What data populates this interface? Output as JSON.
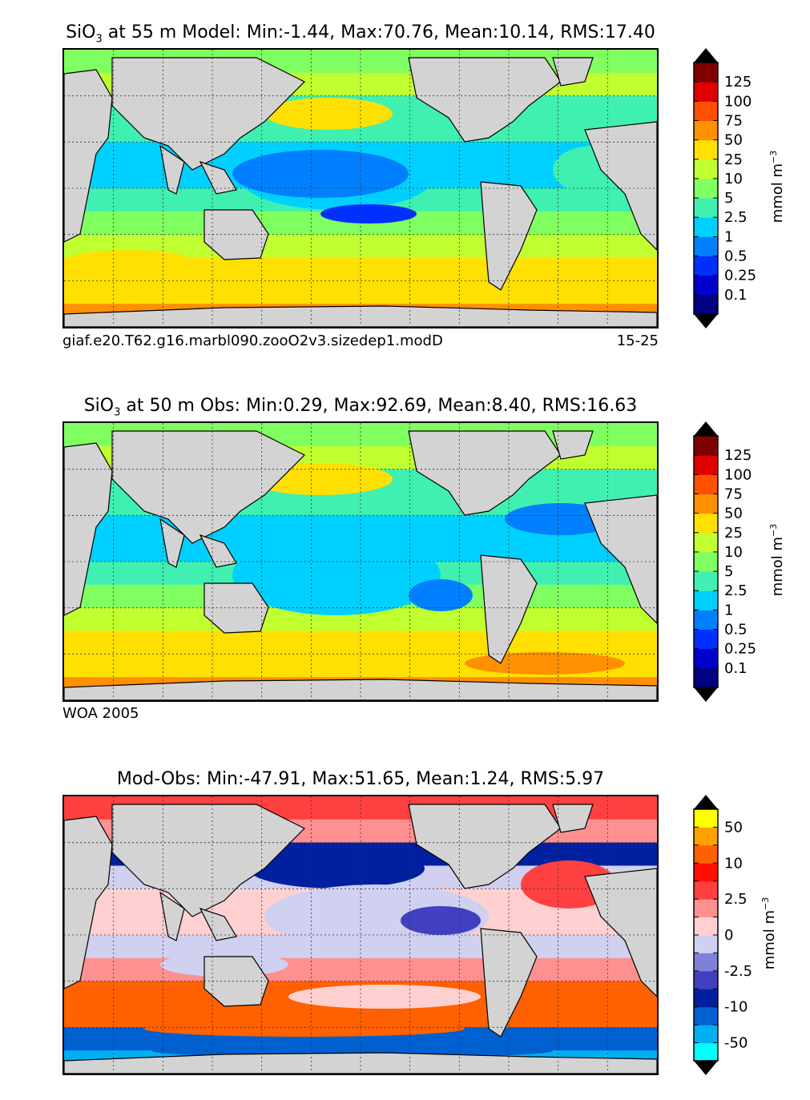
{
  "chart_data": [
    {
      "type": "heatmap",
      "title_main": "SiO",
      "title_sub": "3",
      "title_rest": " at 55 m Model: Min:-1.44, Max:70.76, Mean:10.14, RMS:17.40",
      "caption_left": "giaf.e20.T62.g16.marbl090.zooO2v3.sizedep1.modD",
      "caption_right": "15-25",
      "colorbar_label": "mmol m",
      "colorbar_exp": "−3",
      "colorbar_ticks": [
        "0.1",
        "0.25",
        "0.5",
        "1",
        "2.5",
        "5",
        "10",
        "25",
        "50",
        "75",
        "100",
        "125"
      ],
      "colorbar_colors": [
        "#000080",
        "#0000cd",
        "#0030ff",
        "#0080ff",
        "#00d0ff",
        "#40f0b0",
        "#80ff60",
        "#c0ff30",
        "#ffe000",
        "#ff9000",
        "#ff5000",
        "#e00000",
        "#800000"
      ],
      "stats": {
        "min": -1.44,
        "max": 70.76,
        "mean": 10.14,
        "rms": 17.4,
        "depth_m": 55
      }
    },
    {
      "type": "heatmap",
      "title_main": "SiO",
      "title_sub": "3",
      "title_rest": " at 50 m Obs: Min:0.29, Max:92.69, Mean:8.40, RMS:16.63",
      "caption_left": "WOA 2005",
      "caption_right": "",
      "colorbar_label": "mmol m",
      "colorbar_exp": "−3",
      "colorbar_ticks": [
        "0.1",
        "0.25",
        "0.5",
        "1",
        "2.5",
        "5",
        "10",
        "25",
        "50",
        "75",
        "100",
        "125"
      ],
      "colorbar_colors": [
        "#000080",
        "#0000cd",
        "#0030ff",
        "#0080ff",
        "#00d0ff",
        "#40f0b0",
        "#80ff60",
        "#c0ff30",
        "#ffe000",
        "#ff9000",
        "#ff5000",
        "#e00000",
        "#800000"
      ],
      "stats": {
        "min": 0.29,
        "max": 92.69,
        "mean": 8.4,
        "rms": 16.63,
        "depth_m": 50
      }
    },
    {
      "type": "heatmap",
      "title_main": "Mod-Obs: Min:-47.91, Max:51.65, Mean:1.24, RMS:5.97",
      "title_sub": "",
      "title_rest": "",
      "caption_left": "",
      "caption_right": "",
      "colorbar_label": "mmol m",
      "colorbar_exp": "−3",
      "colorbar_ticks": [
        "-50",
        "",
        "-10",
        "",
        "-2.5",
        "",
        "0",
        "",
        "2.5",
        "",
        "10",
        "",
        "50"
      ],
      "colorbar_colors": [
        "#00ffff",
        "#00b0f0",
        "#0060d0",
        "#0020a0",
        "#4040c0",
        "#8080d8",
        "#d0d0f0",
        "#ffd0d0",
        "#ff9090",
        "#ff4040",
        "#ff1000",
        "#ff6000",
        "#ffa000",
        "#ffff00"
      ],
      "stats": {
        "min": -47.91,
        "max": 51.65,
        "mean": 1.24,
        "rms": 5.97
      }
    }
  ]
}
